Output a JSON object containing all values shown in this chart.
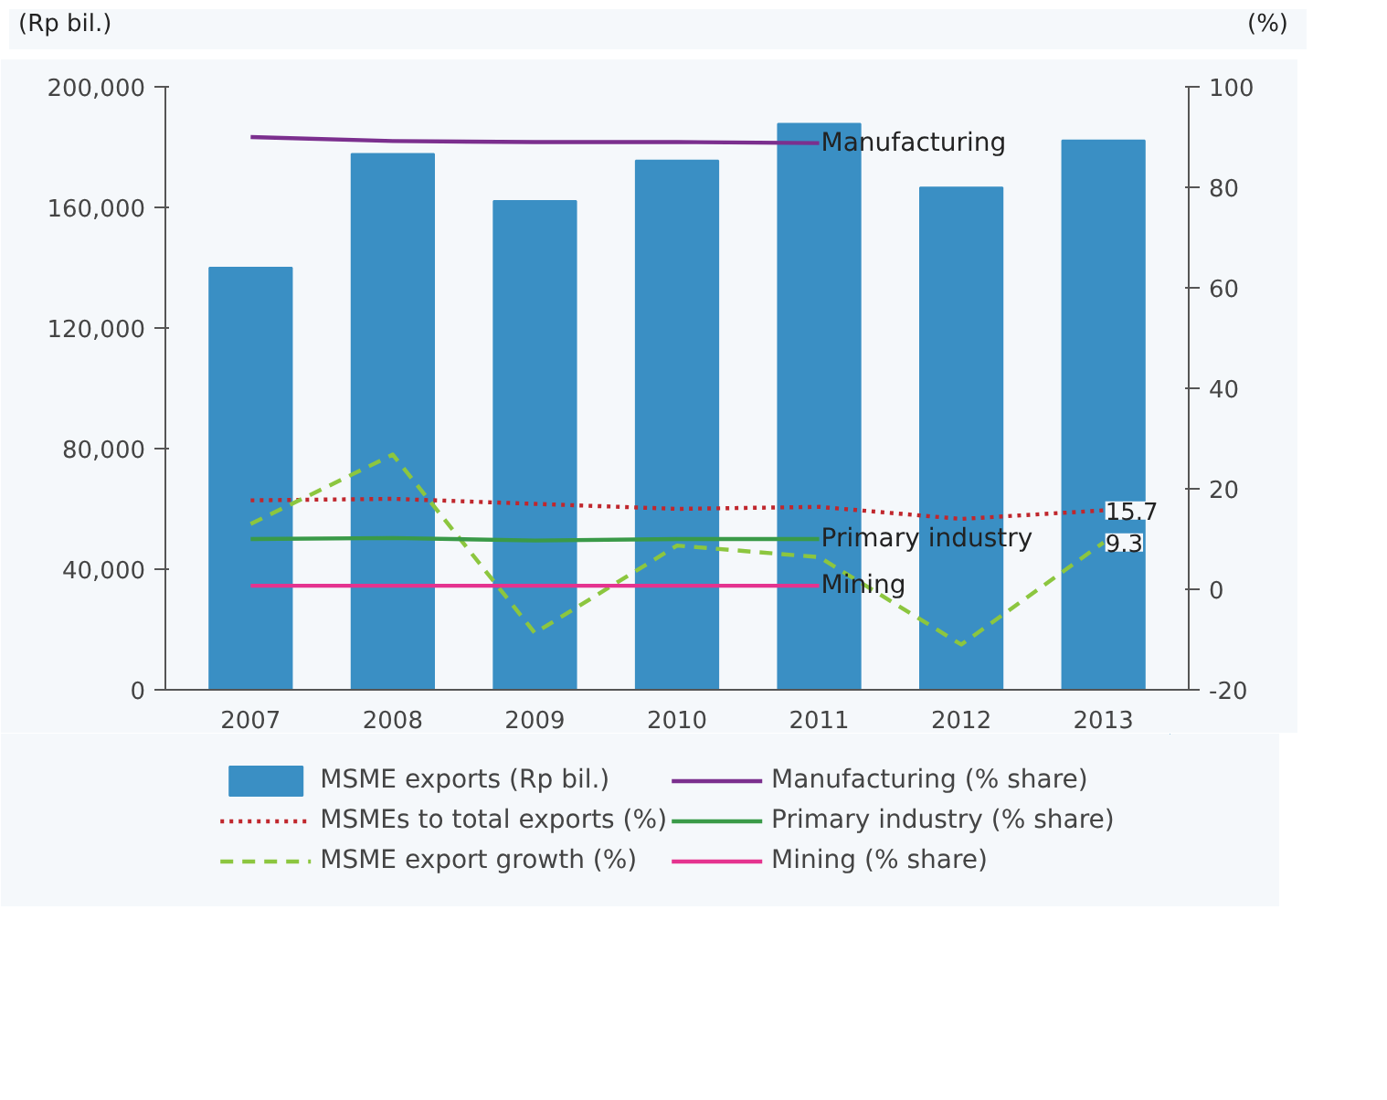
{
  "chart_data": {
    "type": "bar",
    "categories": [
      "2007",
      "2008",
      "2009",
      "2010",
      "2011",
      "2012",
      "2013"
    ],
    "ylabel": "(Rp bil.)",
    "y2label": "(%)",
    "ylim": [
      0,
      200000
    ],
    "yticks": [
      0,
      {
        "value": 40000,
        "label": "40,000"
      },
      {
        "value": 80000,
        "label": "80,000"
      },
      {
        "value": 120000,
        "label": "120,000"
      },
      {
        "value": 160000,
        "label": "160,000"
      },
      {
        "value": 200000,
        "label": "200,000"
      }
    ],
    "y2lim": [
      -20,
      100
    ],
    "y2ticks": [
      -20,
      0,
      20,
      40,
      60,
      80,
      100
    ],
    "legend": "bottom",
    "series": [
      {
        "name": "MSME exports (Rp bil.)",
        "color": "#3a8fc4",
        "values": [
          140000,
          177700,
          162100,
          175500,
          187700,
          166600,
          182200
        ]
      },
      {
        "name": "MSMEs to total exports (%)",
        "type": "line",
        "axis": "y2",
        "line_style": "dotted",
        "color": "#c0272d",
        "values": [
          17.7,
          18,
          17,
          16,
          16.4,
          14,
          15.7
        ],
        "value_labels": [
          null,
          null,
          null,
          null,
          null,
          null,
          "15.7"
        ]
      },
      {
        "name": "MSME export growth (%)",
        "type": "line",
        "axis": "y2",
        "line_style": "dashed",
        "color": "#8cc63f",
        "values": [
          13,
          26.8,
          -8.7,
          8.7,
          6.4,
          -11,
          9.3
        ],
        "value_labels": [
          null,
          null,
          null,
          null,
          null,
          null,
          "9.3"
        ]
      },
      {
        "name": "Manufacturing (% share)",
        "type": "line",
        "axis": "y2",
        "line_style": "solid",
        "color": "#7b2f8e",
        "values": [
          90,
          89.2,
          89,
          89,
          88.8,
          null,
          null
        ]
      },
      {
        "name": "Primary industry (% share)",
        "type": "line",
        "axis": "y2",
        "line_style": "solid",
        "color": "#3a9a48",
        "values": [
          10,
          10.2,
          9.7,
          10,
          10,
          null,
          null
        ]
      },
      {
        "name": "Mining (% share)",
        "type": "line",
        "axis": "y2",
        "line_style": "solid",
        "color": "#e5338f",
        "values": [
          0.7,
          0.7,
          0.7,
          0.7,
          0.7,
          null,
          null
        ]
      }
    ],
    "annotations": [
      {
        "text": "Manufacturing",
        "x": "2011",
        "y": 181300
      },
      {
        "text": "Primary industry",
        "x": "2011",
        "y": 50000
      },
      {
        "text": "Mining",
        "x": "2011",
        "y": 34500
      }
    ]
  }
}
